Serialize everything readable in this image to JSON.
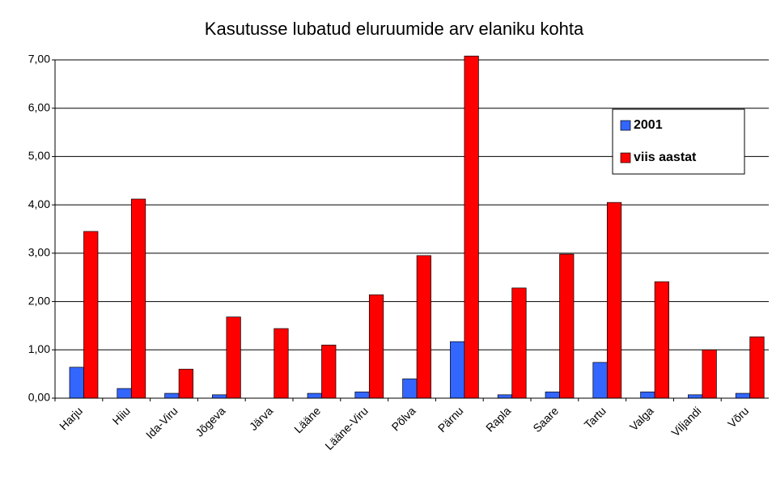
{
  "chart_data": {
    "type": "bar",
    "title": "Kasutusse lubatud eluruumide arv elaniku kohta",
    "categories": [
      "Harju",
      "Hiiu",
      "Ida-Viru",
      "Jõgeva",
      "Järva",
      "Lääne",
      "Lääne-Viru",
      "Põlva",
      "Pärnu",
      "Rapla",
      "Saare",
      "Tartu",
      "Valga",
      "Viljandi",
      "Võru"
    ],
    "series": [
      {
        "name": "2001",
        "color": "#3366ff",
        "values": [
          0.64,
          0.2,
          0.1,
          0.07,
          0,
          0.1,
          0.13,
          0.4,
          1.17,
          0.07,
          0.13,
          0.74,
          0.13,
          0.07,
          0.1
        ]
      },
      {
        "name": "viis aastat",
        "color": "#ff0000",
        "values": [
          3.45,
          4.12,
          0.6,
          1.68,
          1.44,
          1.1,
          2.14,
          2.95,
          7.08,
          2.28,
          2.98,
          4.05,
          2.41,
          1.0,
          1.27
        ]
      }
    ],
    "ylim": [
      0,
      7
    ],
    "yticks": [
      {
        "value": 0,
        "label": "0,00"
      },
      {
        "value": 1,
        "label": "1,00"
      },
      {
        "value": 2,
        "label": "2,00"
      },
      {
        "value": 3,
        "label": "3,00"
      },
      {
        "value": 4,
        "label": "4,00"
      },
      {
        "value": 5,
        "label": "5,00"
      },
      {
        "value": 6,
        "label": "6,00"
      },
      {
        "value": 7,
        "label": "7,00"
      }
    ],
    "grid": true,
    "legend": "right"
  }
}
